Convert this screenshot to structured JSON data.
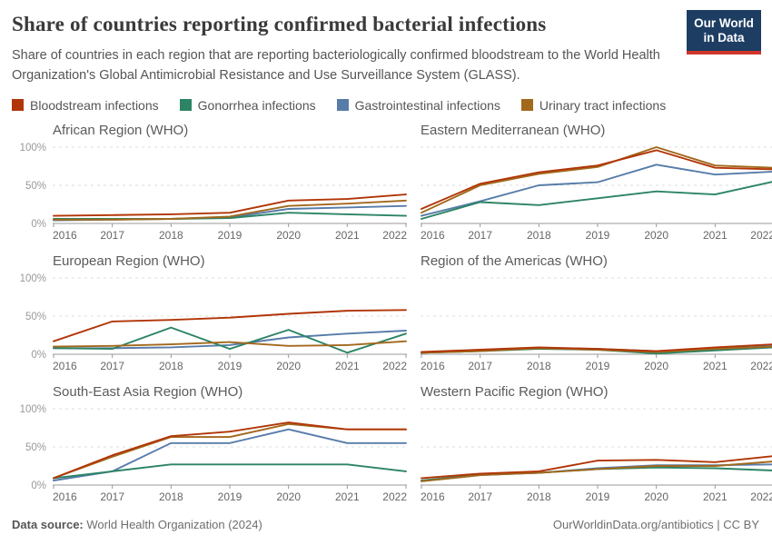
{
  "header": {
    "title": "Share of countries reporting confirmed bacterial infections",
    "subtitle": "Share of countries in each region that are reporting bacteriologically confirmed bloodstream to the World Health Organization's Global Antimicrobial Resistance and Use Surveillance System (GLASS).",
    "logo_line1": "Our World",
    "logo_line2": "in Data"
  },
  "brand": {
    "logo_bg": "#1d3d63",
    "logo_stripe": "#d0342a"
  },
  "legend": [
    {
      "label": "Bloodstream infections",
      "color": "#B13507"
    },
    {
      "label": "Gonorrhea infections",
      "color": "#2C8465"
    },
    {
      "label": "Gastrointestinal infections",
      "color": "#577CA9"
    },
    {
      "label": "Urinary tract infections",
      "color": "#A2681C"
    }
  ],
  "axis_style": {
    "grid_color": "#dcdcdc",
    "axis_color": "#999999",
    "xtick_color": "#666666",
    "ytick_color": "#999999"
  },
  "chart_data": [
    {
      "type": "line",
      "title": "African Region (WHO)",
      "y_axis_labels": true,
      "x": [
        2016,
        2017,
        2018,
        2019,
        2020,
        2021,
        2022
      ],
      "ylim": [
        0,
        100
      ],
      "grid": true,
      "yticks": [
        {
          "value": 0,
          "label": "0%"
        },
        {
          "value": 50,
          "label": "50%"
        },
        {
          "value": 100,
          "label": "100%"
        }
      ],
      "series": [
        {
          "name": "Gastrointestinal infections",
          "values": [
            4,
            5,
            6,
            8,
            19,
            21,
            23
          ]
        },
        {
          "name": "Gonorrhea infections",
          "values": [
            6,
            6,
            6,
            7,
            14,
            12,
            10
          ]
        },
        {
          "name": "Urinary tract infections",
          "values": [
            5,
            5,
            6,
            9,
            23,
            26,
            30
          ]
        },
        {
          "name": "Bloodstream infections",
          "values": [
            10,
            11,
            12,
            14,
            30,
            32,
            38
          ]
        }
      ]
    },
    {
      "type": "line",
      "title": "Eastern Mediterranean (WHO)",
      "y_axis_labels": false,
      "x": [
        2016,
        2017,
        2018,
        2019,
        2020,
        2021,
        2022
      ],
      "ylim": [
        0,
        100
      ],
      "grid": true,
      "yticks": [
        {
          "value": 0,
          "label": "0%"
        },
        {
          "value": 50,
          "label": "50%"
        },
        {
          "value": 100,
          "label": "100%"
        }
      ],
      "series": [
        {
          "name": "Gastrointestinal infections",
          "values": [
            10,
            29,
            50,
            54,
            77,
            64,
            68
          ]
        },
        {
          "name": "Gonorrhea infections",
          "values": [
            6,
            28,
            24,
            33,
            42,
            38,
            55
          ]
        },
        {
          "name": "Urinary tract infections",
          "values": [
            14,
            50,
            65,
            74,
            100,
            76,
            73
          ]
        },
        {
          "name": "Bloodstream infections",
          "values": [
            19,
            52,
            67,
            76,
            96,
            73,
            71
          ]
        }
      ]
    },
    {
      "type": "line",
      "title": "European Region (WHO)",
      "y_axis_labels": true,
      "x": [
        2016,
        2017,
        2018,
        2019,
        2020,
        2021,
        2022
      ],
      "ylim": [
        0,
        100
      ],
      "grid": true,
      "yticks": [
        {
          "value": 0,
          "label": "0%"
        },
        {
          "value": 50,
          "label": "50%"
        },
        {
          "value": 100,
          "label": "100%"
        }
      ],
      "series": [
        {
          "name": "Gastrointestinal infections",
          "values": [
            8,
            8,
            9,
            12,
            22,
            27,
            31
          ]
        },
        {
          "name": "Gonorrhea infections",
          "values": [
            8,
            7,
            35,
            7,
            32,
            2,
            27
          ]
        },
        {
          "name": "Urinary tract infections",
          "values": [
            10,
            11,
            13,
            16,
            11,
            12,
            17
          ]
        },
        {
          "name": "Bloodstream infections",
          "values": [
            17,
            43,
            45,
            48,
            53,
            57,
            58
          ]
        }
      ]
    },
    {
      "type": "line",
      "title": "Region of the Americas (WHO)",
      "y_axis_labels": false,
      "x": [
        2016,
        2017,
        2018,
        2019,
        2020,
        2021,
        2022
      ],
      "ylim": [
        0,
        100
      ],
      "grid": true,
      "yticks": [
        {
          "value": 0,
          "label": "0%"
        },
        {
          "value": 50,
          "label": "50%"
        },
        {
          "value": 100,
          "label": "100%"
        }
      ],
      "series": [
        {
          "name": "Gastrointestinal infections",
          "values": [
            2,
            5,
            8,
            7,
            4,
            7,
            11
          ]
        },
        {
          "name": "Gonorrhea infections",
          "values": [
            2,
            4,
            7,
            6,
            1,
            5,
            9
          ]
        },
        {
          "name": "Urinary tract infections",
          "values": [
            2,
            4,
            8,
            6,
            3,
            7,
            10
          ]
        },
        {
          "name": "Bloodstream infections",
          "values": [
            3,
            6,
            9,
            7,
            4,
            9,
            13
          ]
        }
      ]
    },
    {
      "type": "line",
      "title": "South-East Asia Region (WHO)",
      "y_axis_labels": true,
      "x": [
        2016,
        2017,
        2018,
        2019,
        2020,
        2021,
        2022
      ],
      "ylim": [
        0,
        100
      ],
      "grid": true,
      "yticks": [
        {
          "value": 0,
          "label": "0%"
        },
        {
          "value": 50,
          "label": "50%"
        },
        {
          "value": 100,
          "label": "100%"
        }
      ],
      "series": [
        {
          "name": "Gastrointestinal infections",
          "values": [
            6,
            18,
            55,
            55,
            73,
            55,
            55
          ]
        },
        {
          "name": "Gonorrhea infections",
          "values": [
            9,
            18,
            27,
            27,
            27,
            27,
            18
          ]
        },
        {
          "name": "Urinary tract infections",
          "values": [
            9,
            37,
            63,
            63,
            80,
            73,
            73
          ]
        },
        {
          "name": "Bloodstream infections",
          "values": [
            9,
            39,
            64,
            70,
            82,
            73,
            73
          ]
        }
      ]
    },
    {
      "type": "line",
      "title": "Western Pacific Region (WHO)",
      "y_axis_labels": false,
      "x": [
        2016,
        2017,
        2018,
        2019,
        2020,
        2021,
        2022
      ],
      "ylim": [
        0,
        100
      ],
      "grid": true,
      "yticks": [
        {
          "value": 0,
          "label": "0%"
        },
        {
          "value": 50,
          "label": "50%"
        },
        {
          "value": 100,
          "label": "100%"
        }
      ],
      "series": [
        {
          "name": "Gastrointestinal infections",
          "values": [
            5,
            13,
            16,
            22,
            26,
            26,
            27
          ]
        },
        {
          "name": "Gonorrhea infections",
          "values": [
            6,
            14,
            16,
            21,
            23,
            22,
            19
          ]
        },
        {
          "name": "Urinary tract infections",
          "values": [
            5,
            13,
            16,
            21,
            25,
            25,
            31
          ]
        },
        {
          "name": "Bloodstream infections",
          "values": [
            9,
            15,
            18,
            32,
            33,
            30,
            38
          ]
        }
      ]
    }
  ],
  "footer": {
    "source_label": "Data source:",
    "source_text": " World Health Organization (2024)",
    "link": "OurWorldinData.org/antibiotics",
    "license": " | CC BY"
  }
}
